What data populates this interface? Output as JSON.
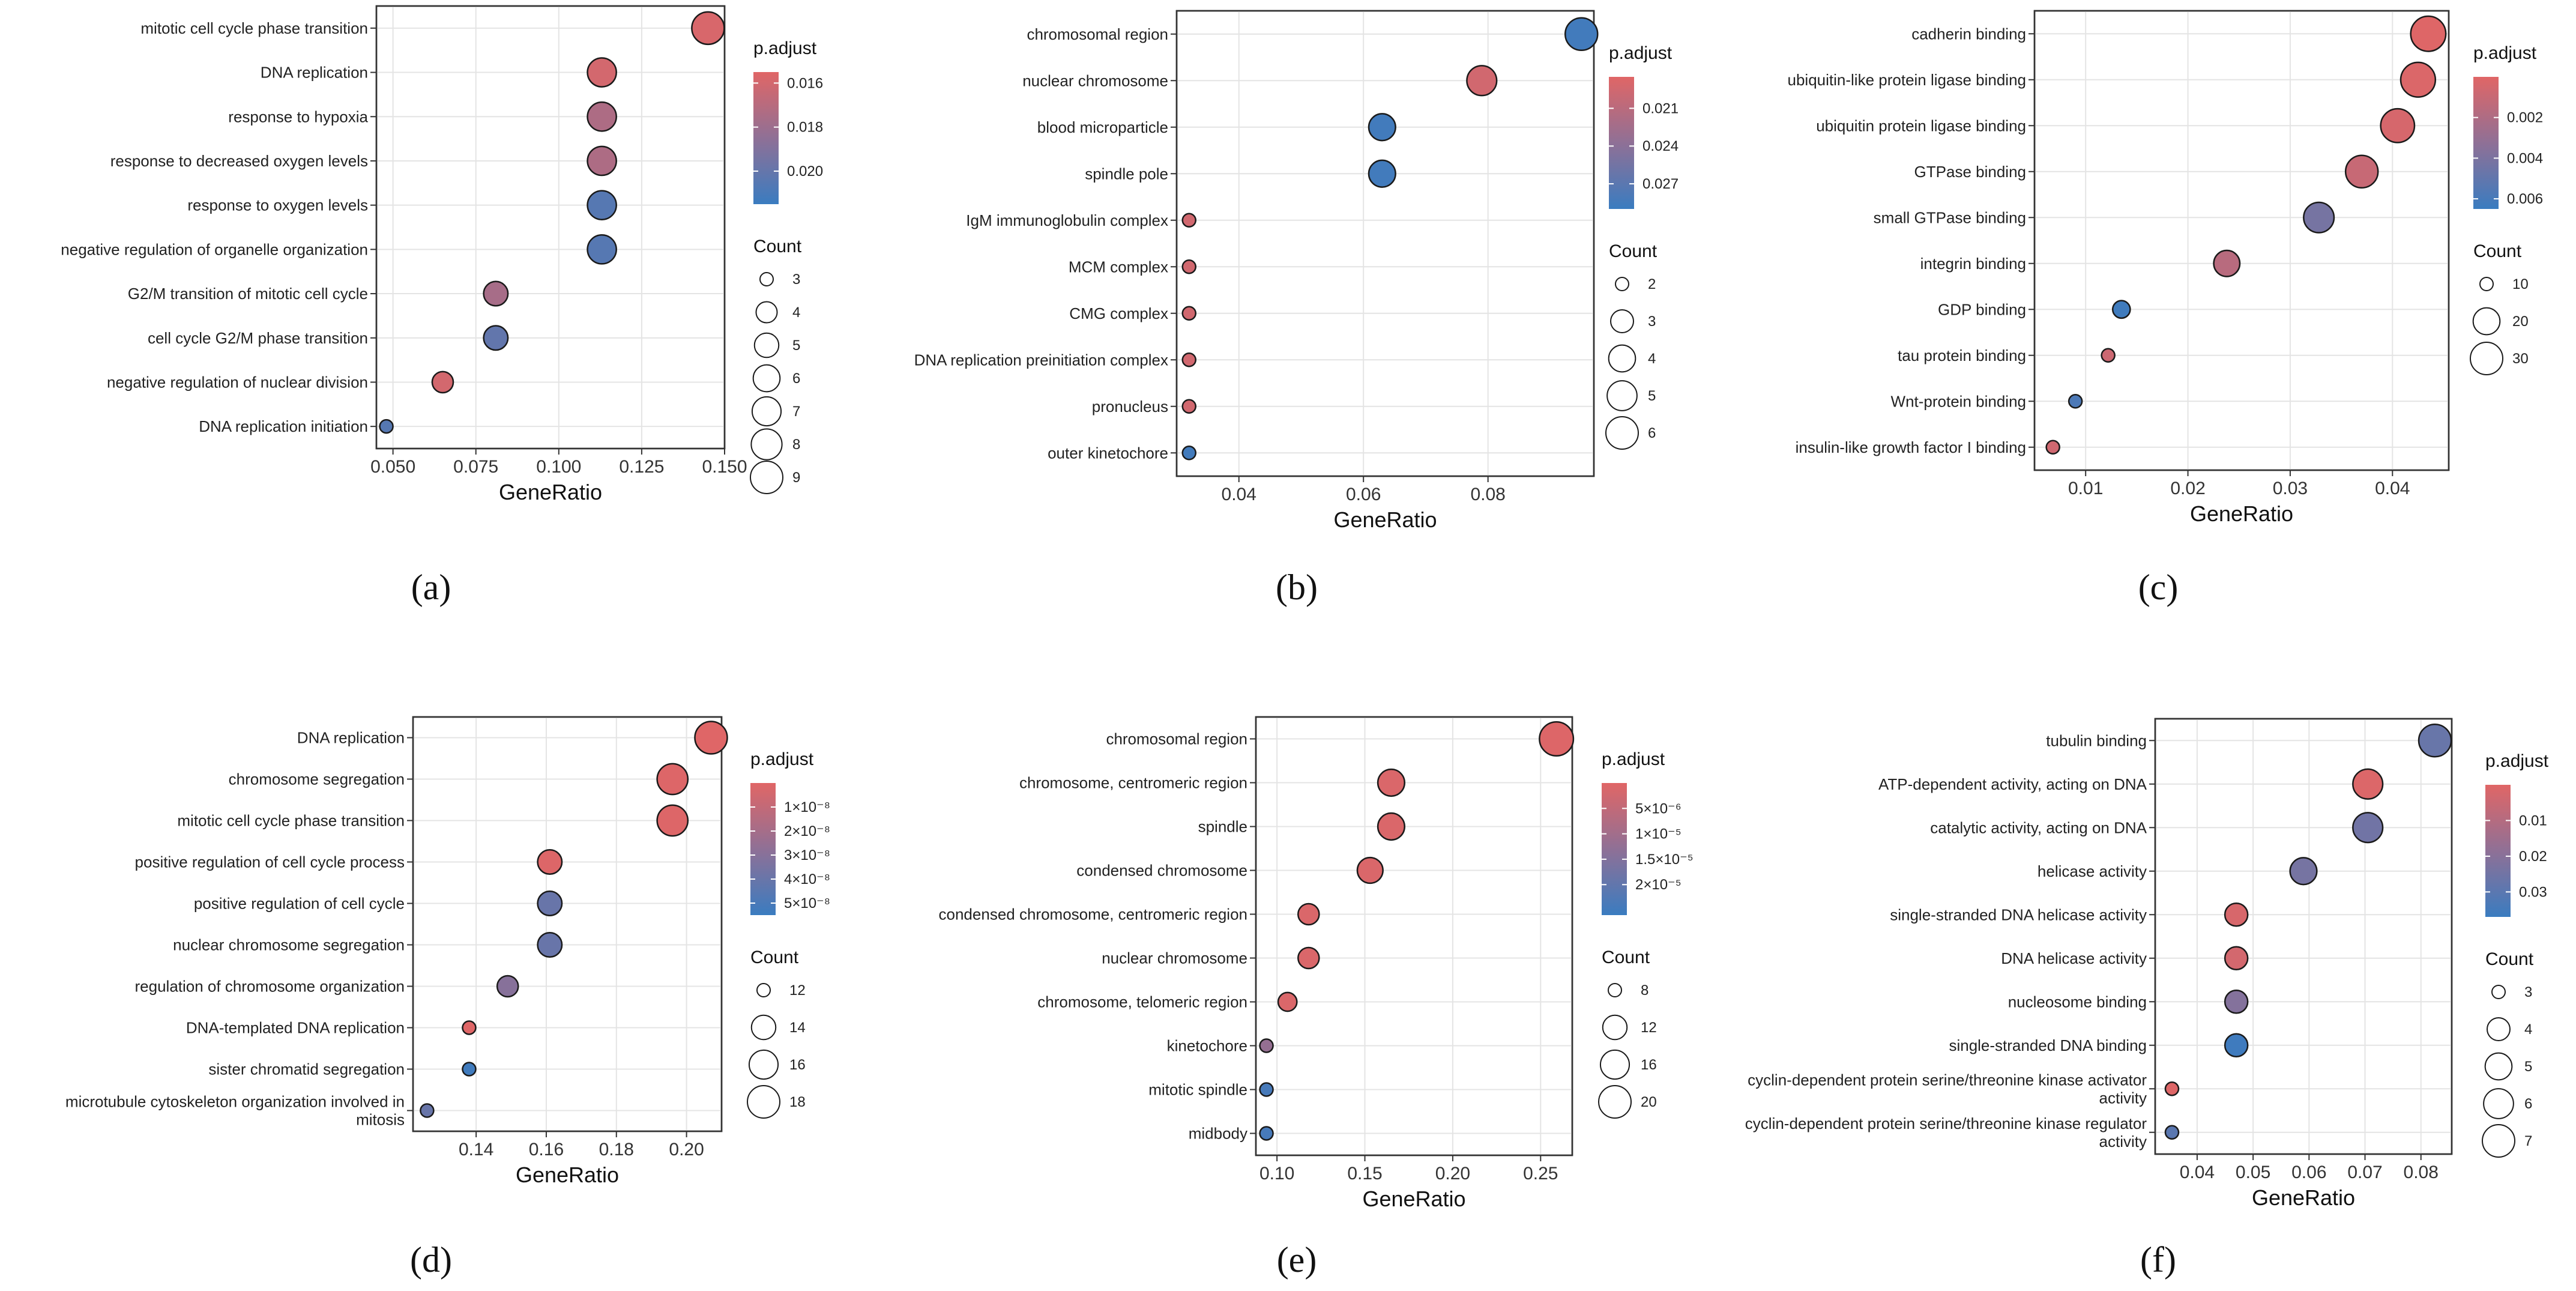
{
  "color_scale": {
    "low_pvalue_color": "#E06666",
    "high_pvalue_color": "#3A7CC0"
  },
  "chart_data": [
    {
      "type": "scatter",
      "panel_label": "(a)",
      "xlabel": "GeneRatio",
      "xlim": [
        0.045,
        0.15
      ],
      "xticks": [
        0.05,
        0.075,
        0.1,
        0.125,
        0.15
      ],
      "xtick_labels": [
        "0.050",
        "0.075",
        "0.100",
        "0.125",
        "0.150"
      ],
      "categories": [
        "mitotic cell cycle phase transition",
        "DNA replication",
        "response to hypoxia",
        "response to decreased oxygen levels",
        "response to oxygen levels",
        "negative regulation of organelle organization",
        "G2/M transition of mitotic cell cycle",
        "cell cycle G2/M phase transition",
        "negative regulation of nuclear division",
        "DNA replication initiation"
      ],
      "x": [
        0.145,
        0.113,
        0.113,
        0.113,
        0.113,
        0.113,
        0.081,
        0.081,
        0.065,
        0.048
      ],
      "count": [
        9,
        7,
        7,
        7,
        7,
        7,
        5,
        5,
        4,
        3
      ],
      "p_adjust": [
        0.0158,
        0.016,
        0.0174,
        0.0174,
        0.0205,
        0.0205,
        0.0176,
        0.0201,
        0.016,
        0.0205
      ],
      "p_legend": {
        "title": "p.adjust",
        "min": 0.0155,
        "max": 0.0215,
        "ticks": [
          0.016,
          0.018,
          0.02
        ],
        "tick_labels": [
          "0.016",
          "0.018",
          "0.020"
        ]
      },
      "count_legend": {
        "title": "Count",
        "values": [
          3,
          4,
          5,
          6,
          7,
          8,
          9
        ],
        "labels": [
          "3",
          "4",
          "5",
          "6",
          "7",
          "8",
          "9"
        ]
      }
    },
    {
      "type": "scatter",
      "panel_label": "(b)",
      "xlabel": "GeneRatio",
      "xlim": [
        0.03,
        0.097
      ],
      "xticks": [
        0.04,
        0.06,
        0.08
      ],
      "xtick_labels": [
        "0.04",
        "0.06",
        "0.08"
      ],
      "categories": [
        "chromosomal region",
        "nuclear chromosome",
        "blood microparticle",
        "spindle pole",
        "IgM immunoglobulin complex",
        "MCM complex",
        "CMG complex",
        "DNA replication preinitiation complex",
        "pronucleus",
        "outer kinetochore"
      ],
      "x": [
        0.095,
        0.079,
        0.063,
        0.063,
        0.032,
        0.032,
        0.032,
        0.032,
        0.032,
        0.032
      ],
      "count": [
        6,
        5,
        4,
        4,
        2,
        2,
        2,
        2,
        2,
        2
      ],
      "p_adjust": [
        0.0285,
        0.0195,
        0.0285,
        0.0285,
        0.0195,
        0.0195,
        0.0195,
        0.0195,
        0.0195,
        0.0285
      ],
      "p_legend": {
        "title": "p.adjust",
        "min": 0.0185,
        "max": 0.029,
        "ticks": [
          0.021,
          0.024,
          0.027
        ],
        "tick_labels": [
          "0.021",
          "0.024",
          "0.027"
        ]
      },
      "count_legend": {
        "title": "Count",
        "values": [
          2,
          3,
          4,
          5,
          6
        ],
        "labels": [
          "2",
          "3",
          "4",
          "5",
          "6"
        ]
      }
    },
    {
      "type": "scatter",
      "panel_label": "(c)",
      "xlabel": "GeneRatio",
      "xlim": [
        0.005,
        0.0455
      ],
      "xticks": [
        0.01,
        0.02,
        0.03,
        0.04
      ],
      "xtick_labels": [
        "0.01",
        "0.02",
        "0.03",
        "0.04"
      ],
      "categories": [
        "cadherin binding",
        "ubiquitin-like protein ligase binding",
        "ubiquitin protein ligase binding",
        "GTPase binding",
        "small GTPase binding",
        "integrin binding",
        "GDP binding",
        "tau protein binding",
        "Wnt-protein binding",
        "insulin-like growth factor I binding"
      ],
      "x": [
        0.0435,
        0.0425,
        0.0405,
        0.037,
        0.0328,
        0.0238,
        0.0135,
        0.0122,
        0.009,
        0.0068
      ],
      "count": [
        36,
        35,
        33,
        30,
        26,
        19,
        11,
        10,
        7,
        5
      ],
      "p_adjust": [
        0.0001,
        0.0002,
        0.0004,
        0.001,
        0.0042,
        0.0016,
        0.0063,
        0.0008,
        0.0058,
        0.0007
      ],
      "p_legend": {
        "title": "p.adjust",
        "min": 0.0,
        "max": 0.0065,
        "ticks": [
          0.002,
          0.004,
          0.006
        ],
        "tick_labels": [
          "0.002",
          "0.004",
          "0.006"
        ]
      },
      "count_legend": {
        "title": "Count",
        "values": [
          10,
          20,
          30
        ],
        "labels": [
          "10",
          "20",
          "30"
        ]
      }
    },
    {
      "type": "scatter",
      "panel_label": "(d)",
      "xlabel": "GeneRatio",
      "xlim": [
        0.122,
        0.21
      ],
      "xticks": [
        0.14,
        0.16,
        0.18,
        0.2
      ],
      "xtick_labels": [
        "0.14",
        "0.16",
        "0.18",
        "0.20"
      ],
      "categories": [
        "DNA replication",
        "chromosome segregation",
        "mitotic cell cycle phase transition",
        "positive regulation of cell cycle process",
        "positive regulation of cell cycle",
        "nuclear chromosome segregation",
        "regulation of chromosome organization",
        "DNA-templated DNA replication",
        "sister chromatid segregation",
        "microtubule cytoskeleton organization involved in mitosis"
      ],
      "x": [
        0.207,
        0.196,
        0.196,
        0.161,
        0.161,
        0.161,
        0.149,
        0.138,
        0.138,
        0.126
      ],
      "count": [
        18,
        17,
        17,
        14,
        14,
        14,
        13,
        12,
        12,
        11
      ],
      "p_adjust": [
        5e-10,
        1e-09,
        1e-09,
        1e-09,
        4e-08,
        4e-08,
        3e-08,
        5e-10,
        5.3e-08,
        4e-08
      ],
      "p_legend": {
        "title": "p.adjust",
        "min": 0.0,
        "max": 5.5e-08,
        "ticks": [
          1e-08,
          2e-08,
          3e-08,
          4e-08,
          5e-08
        ],
        "tick_labels": [
          "1×10⁻⁸",
          "2×10⁻⁸",
          "3×10⁻⁸",
          "4×10⁻⁸",
          "5×10⁻⁸"
        ]
      },
      "count_legend": {
        "title": "Count",
        "values": [
          12,
          14,
          16,
          18
        ],
        "labels": [
          "12",
          "14",
          "16",
          "18"
        ]
      }
    },
    {
      "type": "scatter",
      "panel_label": "(e)",
      "xlabel": "GeneRatio",
      "xlim": [
        0.088,
        0.268
      ],
      "xticks": [
        0.1,
        0.15,
        0.2,
        0.25
      ],
      "xtick_labels": [
        "0.10",
        "0.15",
        "0.20",
        "0.25"
      ],
      "categories": [
        "chromosomal region",
        "chromosome, centromeric region",
        "spindle",
        "condensed chromosome",
        "condensed chromosome, centromeric region",
        "nuclear chromosome",
        "chromosome, telomeric region",
        "kinetochore",
        "mitotic spindle",
        "midbody"
      ],
      "x": [
        0.259,
        0.165,
        0.165,
        0.153,
        0.118,
        0.118,
        0.106,
        0.094,
        0.094,
        0.094
      ],
      "count": [
        22,
        14,
        14,
        13,
        10,
        10,
        9,
        8,
        8,
        8
      ],
      "p_adjust": [
        5e-07,
        1e-06,
        1e-06,
        1e-06,
        1e-06,
        1e-06,
        1e-06,
        1.2e-05,
        2.4e-05,
        2.4e-05
      ],
      "p_legend": {
        "title": "p.adjust",
        "min": 0.0,
        "max": 2.6e-05,
        "ticks": [
          5e-06,
          1e-05,
          1.5e-05,
          2e-05
        ],
        "tick_labels": [
          "5×10⁻⁶",
          "1×10⁻⁵",
          "1.5×10⁻⁵",
          "2×10⁻⁵"
        ]
      },
      "count_legend": {
        "title": "Count",
        "values": [
          8,
          12,
          16,
          20
        ],
        "labels": [
          "8",
          "12",
          "16",
          "20"
        ]
      }
    },
    {
      "type": "scatter",
      "panel_label": "(f)",
      "xlabel": "GeneRatio",
      "xlim": [
        0.0325,
        0.0855
      ],
      "xticks": [
        0.04,
        0.05,
        0.06,
        0.07,
        0.08
      ],
      "xtick_labels": [
        "0.04",
        "0.05",
        "0.06",
        "0.07",
        "0.08"
      ],
      "categories": [
        "tubulin binding",
        "ATP-dependent activity, acting on DNA",
        "catalytic activity, acting on DNA",
        "helicase activity",
        "single-stranded DNA helicase activity",
        "DNA helicase activity",
        "nucleosome binding",
        "single-stranded DNA binding",
        "cyclin-dependent protein serine/threonine kinase activator activity",
        "cyclin-dependent protein serine/threonine kinase regulator activity"
      ],
      "x": [
        0.0825,
        0.0705,
        0.0705,
        0.059,
        0.047,
        0.047,
        0.047,
        0.047,
        0.0355,
        0.0355
      ],
      "count": [
        7,
        6,
        6,
        5,
        4,
        4,
        4,
        4,
        3,
        3
      ],
      "p_adjust": [
        0.027,
        0.001,
        0.025,
        0.024,
        0.002,
        0.003,
        0.021,
        0.036,
        0.0005,
        0.03
      ],
      "p_legend": {
        "title": "p.adjust",
        "min": 0.0,
        "max": 0.037,
        "ticks": [
          0.01,
          0.02,
          0.03
        ],
        "tick_labels": [
          "0.01",
          "0.02",
          "0.03"
        ]
      },
      "count_legend": {
        "title": "Count",
        "values": [
          3,
          4,
          5,
          6,
          7
        ],
        "labels": [
          "3",
          "4",
          "5",
          "6",
          "7"
        ]
      }
    }
  ]
}
